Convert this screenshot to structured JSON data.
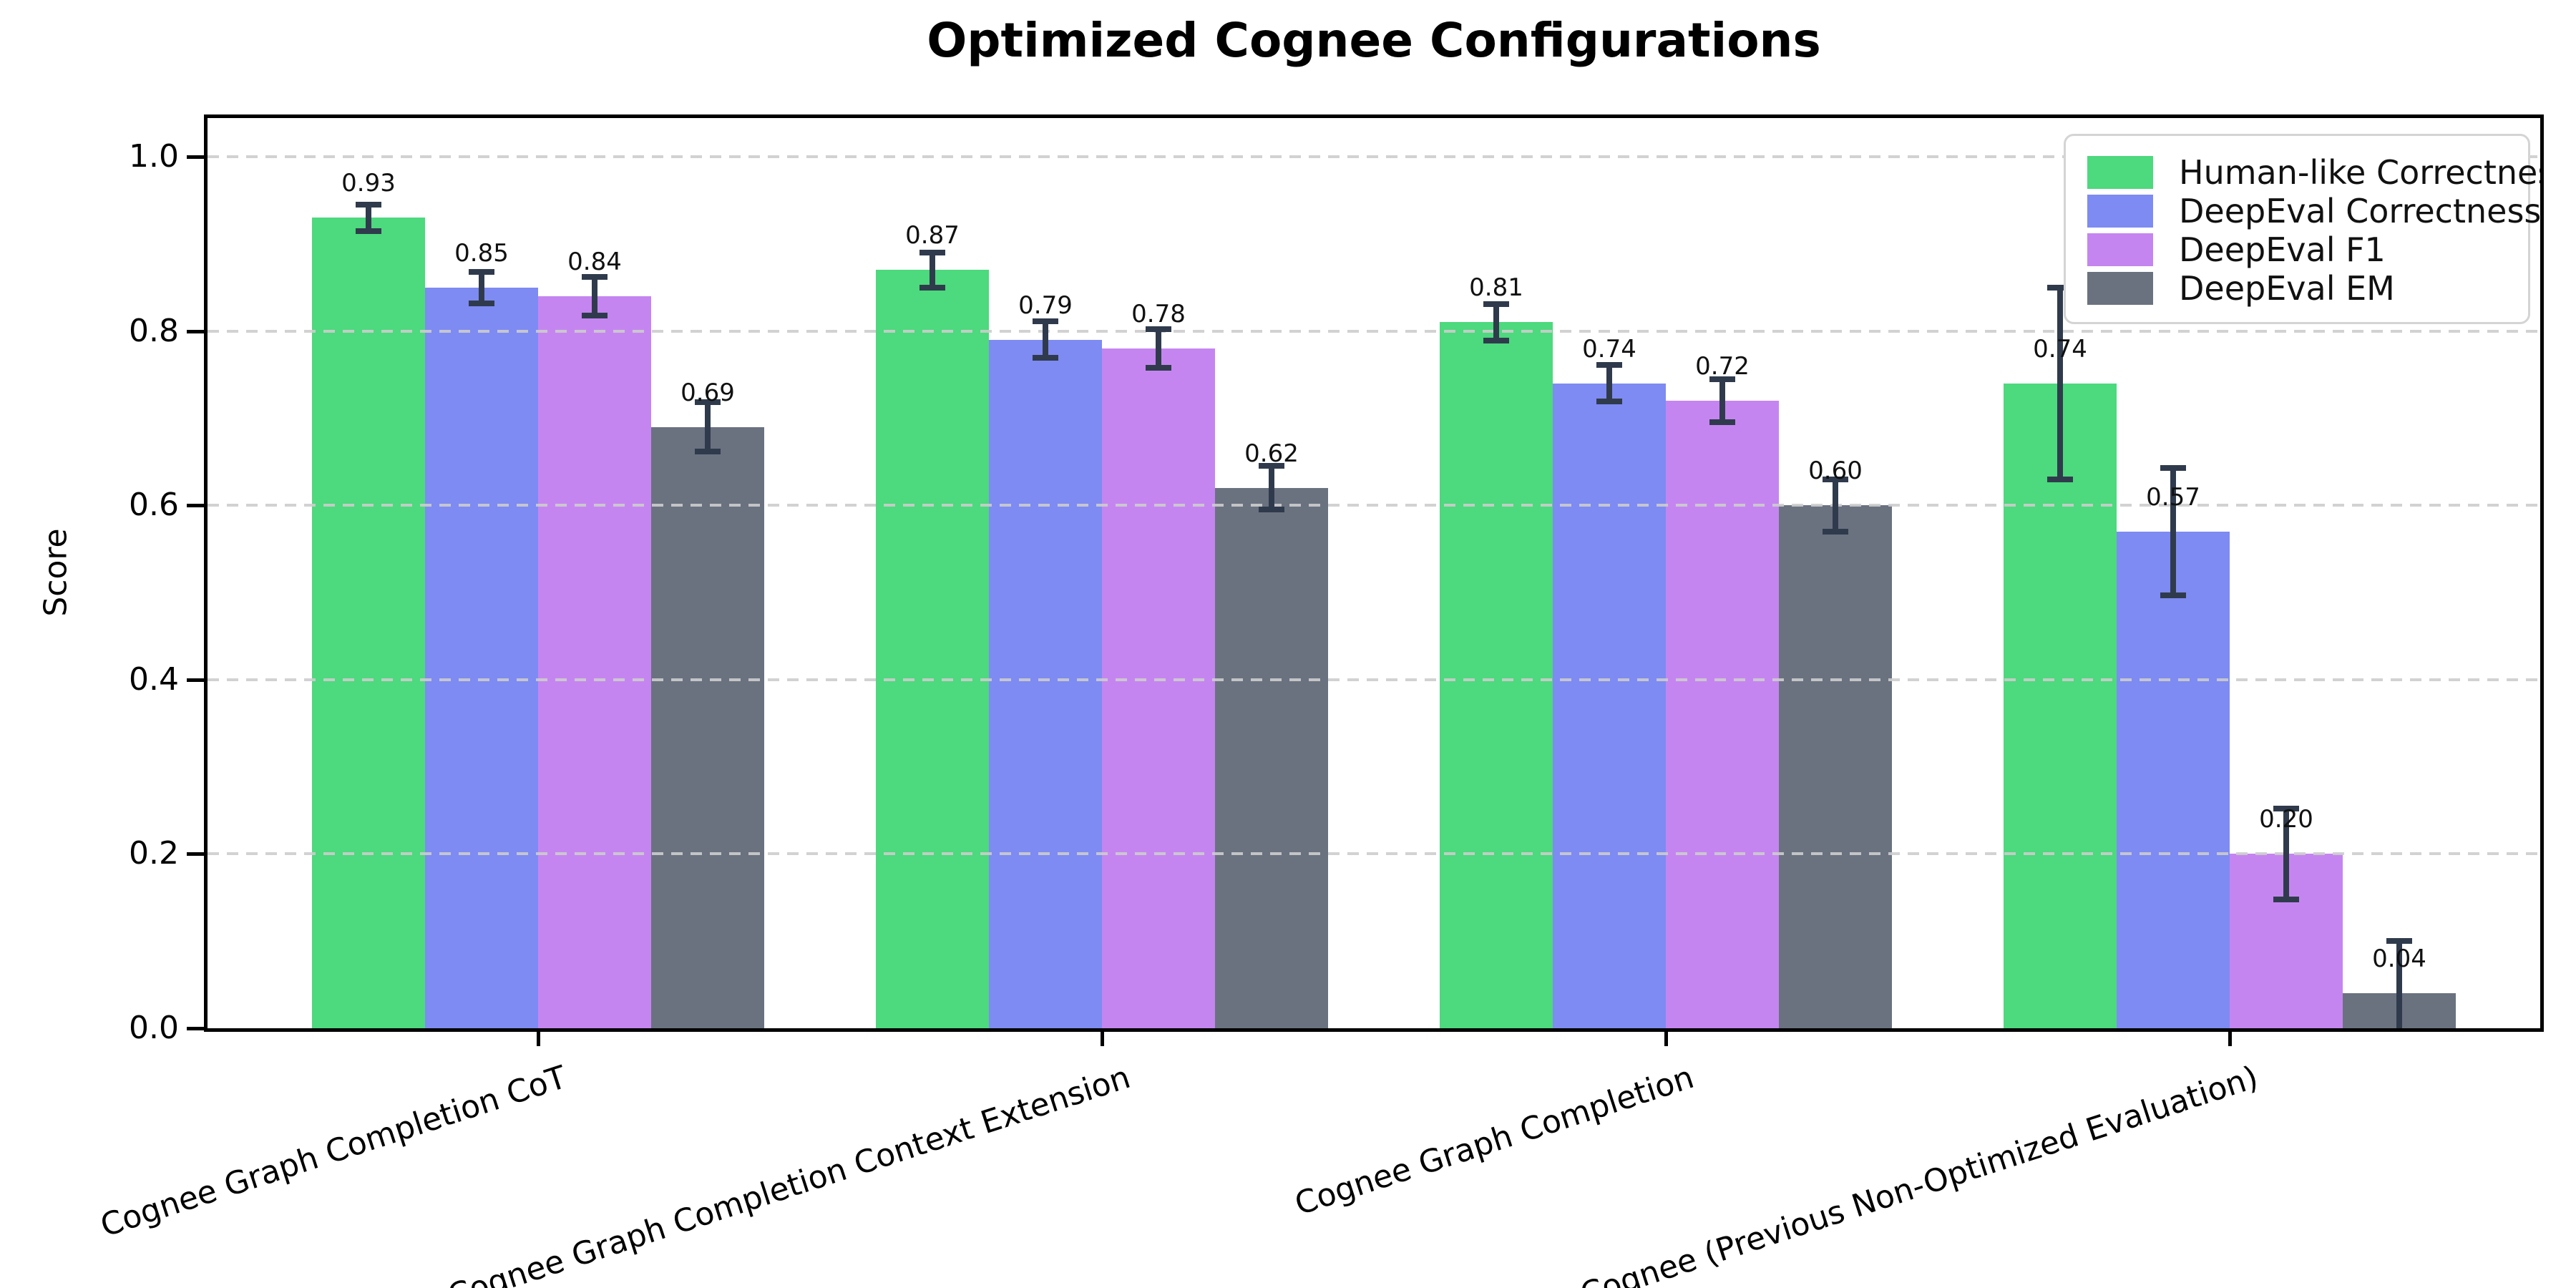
{
  "chart_data": {
    "type": "bar",
    "title": "Optimized Cognee Configurations",
    "xlabel": "",
    "ylabel": "Score",
    "categories": [
      "Cognee Graph Completion CoT",
      "Cognee Graph Completion Context Extension",
      "Cognee Graph Completion",
      "Cognee (Previous Non-Optimized Evaluation)"
    ],
    "series": [
      {
        "name": "Human-like Correctness",
        "color": "#4DD97D",
        "values": [
          0.93,
          0.87,
          0.81,
          0.74
        ],
        "errors": [
          0.015,
          0.02,
          0.021,
          0.11
        ]
      },
      {
        "name": "DeepEval Correctness",
        "color": "#7E8BF2",
        "values": [
          0.85,
          0.79,
          0.74,
          0.57
        ],
        "errors": [
          0.018,
          0.021,
          0.021,
          0.073
        ]
      },
      {
        "name": "DeepEval F1",
        "color": "#C585F0",
        "values": [
          0.84,
          0.78,
          0.72,
          0.2
        ],
        "errors": [
          0.022,
          0.022,
          0.025,
          0.052
        ]
      },
      {
        "name": "DeepEval EM",
        "color": "#6A7280",
        "values": [
          0.69,
          0.62,
          0.6,
          0.04
        ],
        "errors": [
          0.028,
          0.025,
          0.03,
          0.06
        ]
      }
    ],
    "bar_value_labels": [
      "0.93",
      "0.85",
      "0.84",
      "0.69",
      "0.87",
      "0.79",
      "0.78",
      "0.62",
      "0.81",
      "0.74",
      "0.72",
      "0.60",
      "0.74",
      "0.57",
      "0.20",
      "0.04"
    ],
    "ytick_labels": [
      "0.0",
      "0.2",
      "0.4",
      "0.6",
      "0.8",
      "1.0"
    ],
    "yticks": [
      0.0,
      0.2,
      0.4,
      0.6,
      0.8,
      1.0
    ],
    "ylim": [
      0.0,
      1.05
    ],
    "grid": "horizontal-dashed",
    "legend_position": "upper-right",
    "error_bar_color": "#2F3B4C"
  }
}
